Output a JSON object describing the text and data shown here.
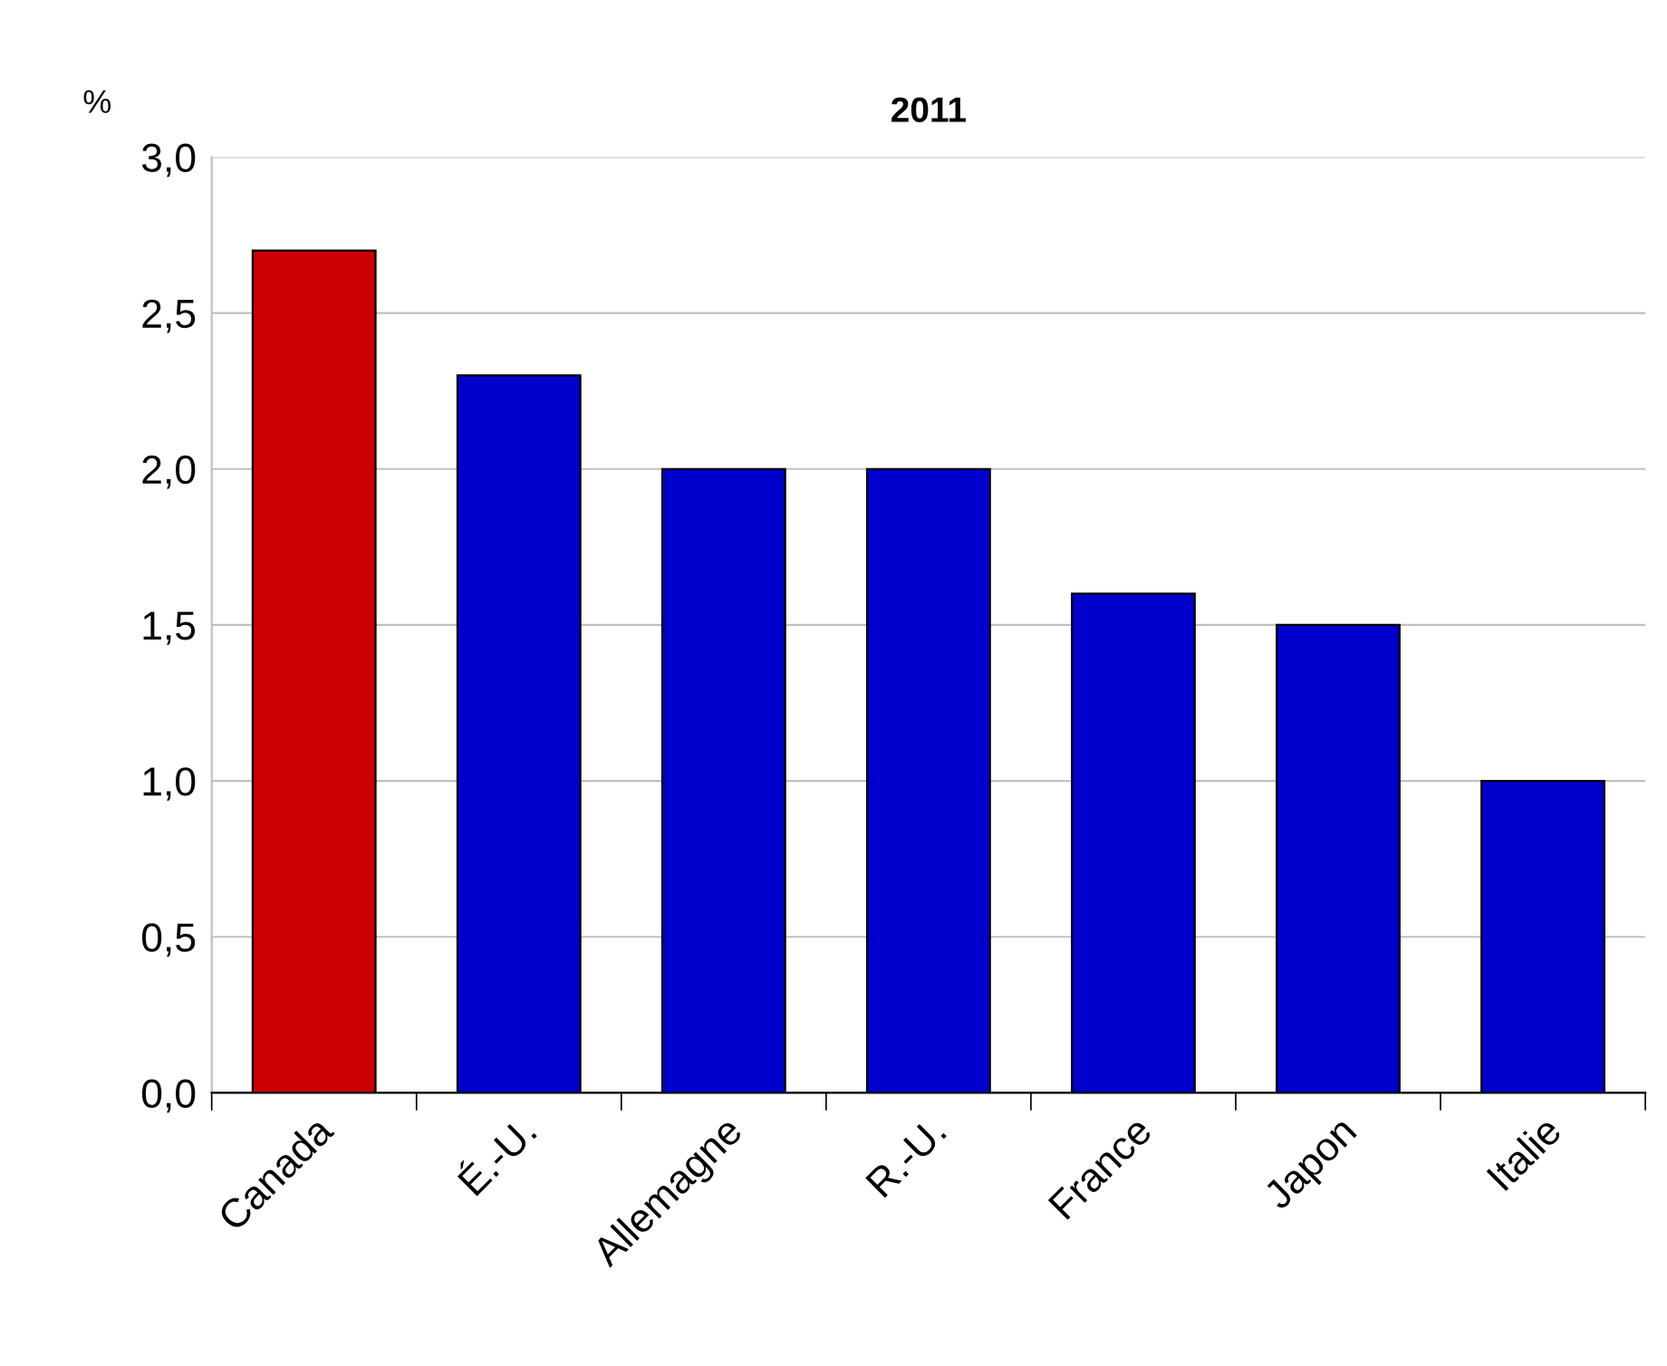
{
  "chart_data": {
    "type": "bar",
    "title": "2011",
    "ylabel": "%",
    "categories": [
      "Canada",
      "É.-U.",
      "Allemagne",
      "R.-U.",
      "France",
      "Japon",
      "Italie"
    ],
    "values": [
      2.7,
      2.3,
      2.0,
      2.0,
      1.6,
      1.5,
      1.0
    ],
    "colors": [
      "#cc0000",
      "#0000cc",
      "#0000cc",
      "#0000cc",
      "#0000cc",
      "#0000cc",
      "#0000cc"
    ],
    "ylim": [
      0,
      3
    ],
    "yticks": [
      {
        "value": 0,
        "label": "0,0"
      },
      {
        "value": 0.5,
        "label": "0,5"
      },
      {
        "value": 1,
        "label": "1,0"
      },
      {
        "value": 1.5,
        "label": "1,5"
      },
      {
        "value": 2,
        "label": "2,0"
      },
      {
        "value": 2.5,
        "label": "2,5"
      },
      {
        "value": 3,
        "label": "3,0"
      }
    ],
    "grid": "y"
  }
}
